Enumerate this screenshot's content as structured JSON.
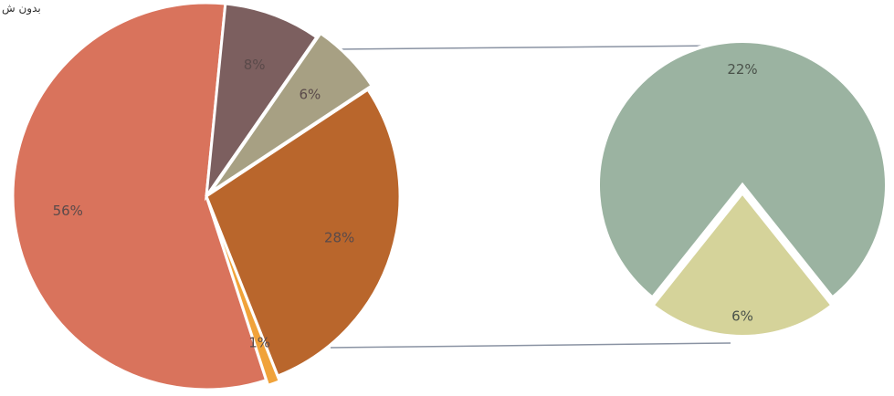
{
  "header": {
    "label": "بدون ش"
  },
  "chart_data": [
    {
      "type": "pie",
      "role": "main",
      "slices": [
        {
          "label": "56%",
          "value": 56,
          "color": "#d9735c"
        },
        {
          "label": "8%",
          "value": 8,
          "color": "#7c5f5f"
        },
        {
          "label": "6%",
          "value": 6,
          "color": "#a7a083"
        },
        {
          "label": "28%",
          "value": 28,
          "color": "#b9662c"
        },
        {
          "label": "1%",
          "value": 1,
          "color": "#f0a23a"
        }
      ]
    },
    {
      "type": "pie",
      "role": "detail",
      "slices": [
        {
          "label": "22%",
          "value": 22,
          "color": "#9bb3a1"
        },
        {
          "label": "6%",
          "value": 6,
          "color": "#d5d39a"
        }
      ]
    }
  ]
}
